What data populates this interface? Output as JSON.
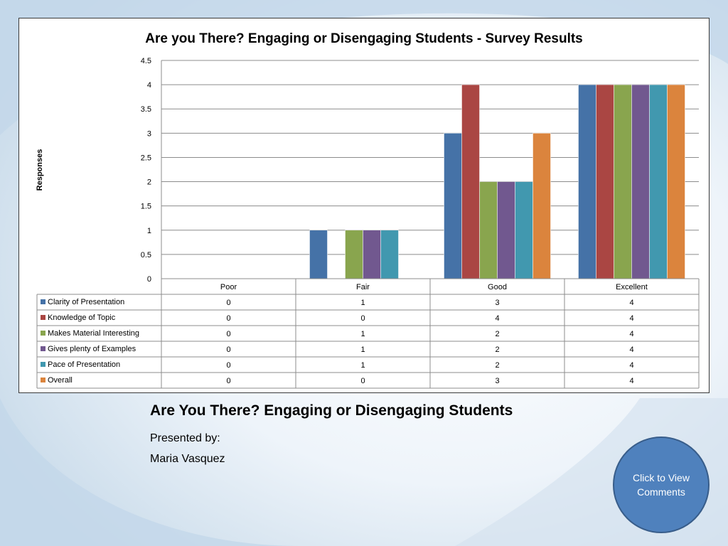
{
  "slide": {
    "title": "Are You There? Engaging or Disengaging Students",
    "presented_by": "Presented by:",
    "presenter": "Maria Vasquez",
    "comments_button": "Click to View Comments"
  },
  "colors": {
    "background_swoosh": "#b9cfe3",
    "button_fill": "#4f81bd",
    "gridline": "#8c8c8c"
  },
  "chart_data": {
    "type": "bar",
    "title": "Are you There? Engaging or Disengaging Students - Survey Results",
    "ylabel": "Responses",
    "xlabel": "",
    "ylim": [
      0,
      4.5
    ],
    "yticks": [
      "0",
      "0.5",
      "1",
      "1.5",
      "2",
      "2.5",
      "3",
      "3.5",
      "4",
      "4.5"
    ],
    "grid": true,
    "legend": "data-table",
    "categories": [
      "Poor",
      "Fair",
      "Good",
      "Excellent"
    ],
    "series": [
      {
        "name": "Clarity of Presentation",
        "color": "#4572a7",
        "values": [
          0,
          1,
          3,
          4
        ]
      },
      {
        "name": "Knowledge of Topic",
        "color": "#aa4643",
        "values": [
          0,
          0,
          4,
          4
        ]
      },
      {
        "name": "Makes Material Interesting",
        "color": "#89a54e",
        "values": [
          0,
          1,
          2,
          4
        ]
      },
      {
        "name": "Gives plenty of Examples",
        "color": "#71588f",
        "values": [
          0,
          1,
          2,
          4
        ]
      },
      {
        "name": "Pace of Presentation",
        "color": "#4198af",
        "values": [
          0,
          1,
          2,
          4
        ]
      },
      {
        "name": "Overall",
        "color": "#db843d",
        "values": [
          0,
          0,
          3,
          4
        ]
      }
    ],
    "table_values": [
      [
        "0",
        "1",
        "3",
        "4"
      ],
      [
        "0",
        "0",
        "4",
        "4"
      ],
      [
        "0",
        "1",
        "2",
        "4"
      ],
      [
        "0",
        "1",
        "2",
        "4"
      ],
      [
        "0",
        "1",
        "2",
        "4"
      ],
      [
        "0",
        "0",
        "3",
        "4"
      ]
    ]
  }
}
